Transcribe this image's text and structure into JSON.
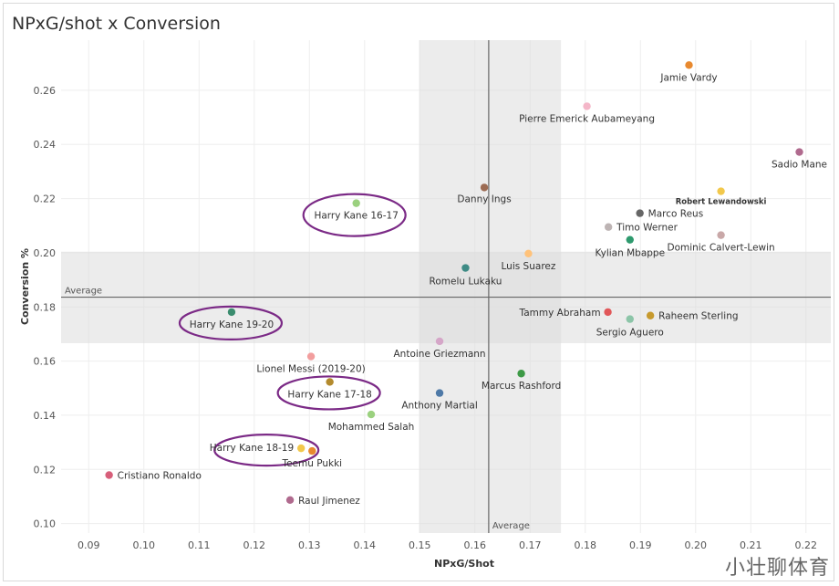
{
  "title": "NPxG/shot x Conversion",
  "watermark": "小壮聊体育",
  "chart_data": {
    "type": "scatter",
    "title": "NPxG/shot x Conversion",
    "xlabel": "NPxG/Shot",
    "ylabel": "Conversion %",
    "xlim": [
      0.085,
      0.2245
    ],
    "ylim": [
      0.0965,
      0.2785
    ],
    "xticks": [
      "0.09",
      "0.10",
      "0.11",
      "0.12",
      "0.13",
      "0.14",
      "0.15",
      "0.16",
      "0.17",
      "0.18",
      "0.19",
      "0.20",
      "0.21",
      "0.22"
    ],
    "yticks": [
      "0.10",
      "0.12",
      "0.14",
      "0.16",
      "0.18",
      "0.20",
      "0.22",
      "0.24",
      "0.26"
    ],
    "grid": true,
    "average_x": 0.1625,
    "average_y": 0.1836,
    "average_label": "Average",
    "band_x": [
      0.1499,
      0.1756
    ],
    "band_y": [
      0.1666,
      0.2004
    ],
    "points": [
      {
        "name": "Jamie Vardy",
        "x": 0.1988,
        "y": 0.2693,
        "color": "#e8892f"
      },
      {
        "name": "Pierre Emerick Aubameyang",
        "x": 0.1803,
        "y": 0.2541,
        "color": "#f4b6c8"
      },
      {
        "name": "Sadio Mane",
        "x": 0.2188,
        "y": 0.2372,
        "color": "#b06a8e"
      },
      {
        "name": "Robert Lewandowski",
        "x": 0.2046,
        "y": 0.2227,
        "color": "#f2c84b"
      },
      {
        "name": "Danny Ings",
        "x": 0.1617,
        "y": 0.2241,
        "color": "#9c6b53"
      },
      {
        "name": "Harry Kane 16-17",
        "x": 0.1385,
        "y": 0.2183,
        "color": "#9bd17f"
      },
      {
        "name": "Marco Reus",
        "x": 0.1899,
        "y": 0.2146,
        "color": "#666666"
      },
      {
        "name": "Timo Werner",
        "x": 0.1842,
        "y": 0.2095,
        "color": "#bdb4b4"
      },
      {
        "name": "Kylian Mbappe",
        "x": 0.1881,
        "y": 0.2048,
        "color": "#2e9a6e"
      },
      {
        "name": "Dominic Calvert-Lewin",
        "x": 0.2046,
        "y": 0.2065,
        "color": "#c9a8a8"
      },
      {
        "name": "Luis Suarez",
        "x": 0.1697,
        "y": 0.1997,
        "color": "#ffc27a"
      },
      {
        "name": "Romelu Lukaku",
        "x": 0.1583,
        "y": 0.1944,
        "color": "#3e8b85"
      },
      {
        "name": "Harry Kane 19-20",
        "x": 0.1159,
        "y": 0.1781,
        "color": "#3a8c6e"
      },
      {
        "name": "Tammy Abraham",
        "x": 0.1841,
        "y": 0.1781,
        "color": "#e15759"
      },
      {
        "name": "Raheem Sterling",
        "x": 0.1918,
        "y": 0.1768,
        "color": "#c79a2e"
      },
      {
        "name": "Sergio Aguero",
        "x": 0.1881,
        "y": 0.1755,
        "color": "#8cc5a8"
      },
      {
        "name": "Antoine Griezmann",
        "x": 0.1536,
        "y": 0.1673,
        "color": "#d5a6c8"
      },
      {
        "name": "Lionel Messi (2019-20)",
        "x": 0.1303,
        "y": 0.1617,
        "color": "#f29e9e"
      },
      {
        "name": "Marcus Rashford",
        "x": 0.1684,
        "y": 0.1554,
        "color": "#3d9a46"
      },
      {
        "name": "Harry Kane 17-18",
        "x": 0.1337,
        "y": 0.1523,
        "color": "#b38a2d"
      },
      {
        "name": "Anthony Martial",
        "x": 0.1536,
        "y": 0.1482,
        "color": "#4e79a7"
      },
      {
        "name": "Mohammed Salah",
        "x": 0.1412,
        "y": 0.1403,
        "color": "#9bd17f"
      },
      {
        "name": "Harry Kane 18-19",
        "x": 0.1285,
        "y": 0.1278,
        "color": "#f2c84b"
      },
      {
        "name": "Teemu Pukki",
        "x": 0.1305,
        "y": 0.1268,
        "color": "#e8892f"
      },
      {
        "name": "Cristiano Ronaldo",
        "x": 0.0937,
        "y": 0.1179,
        "color": "#d75f7a"
      },
      {
        "name": "Raul Jimenez",
        "x": 0.1265,
        "y": 0.1087,
        "color": "#b06a8e"
      }
    ],
    "highlighted": [
      "Harry Kane 16-17",
      "Harry Kane 19-20",
      "Harry Kane 17-18",
      "Harry Kane 18-19"
    ]
  },
  "colors": {
    "grid": "#eeeeee",
    "band": "#dcdcdc",
    "avg_line": "#666666",
    "highlight_ring": "#7b2a86"
  }
}
